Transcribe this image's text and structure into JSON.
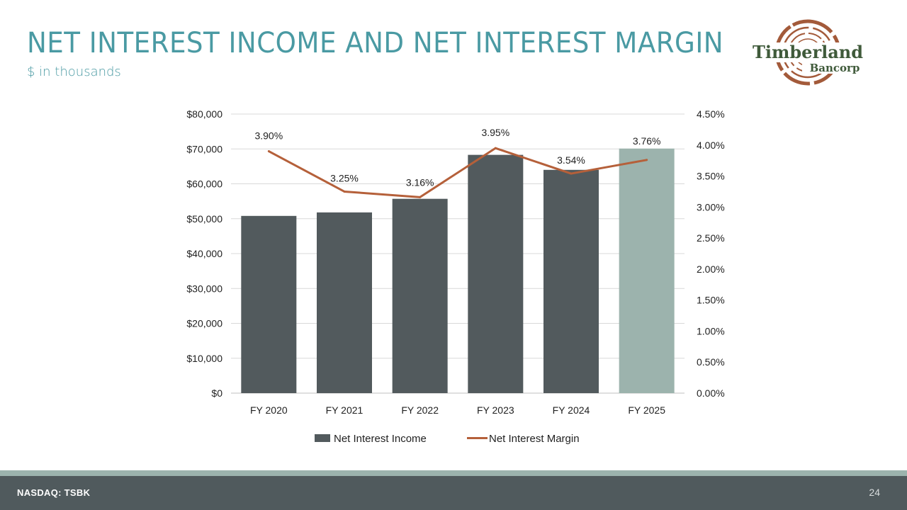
{
  "slide": {
    "title": "NET INTEREST INCOME AND NET INTEREST MARGIN",
    "subtitle": "$ in thousands",
    "footer_left": "NASDAQ: TSBK",
    "page_number": "24"
  },
  "logo": {
    "line1": "Timberland",
    "line2": "Bancorp",
    "ring_color": "#a35a3a",
    "text_color": "#3f5a3a"
  },
  "colors": {
    "accent": "#4a9aa3",
    "bar": "#525a5d",
    "bar_highlight": "#9cb3ad",
    "line": "#b5603a",
    "footer": "#505a5d"
  },
  "chart_data": {
    "type": "bar",
    "categories": [
      "FY 2020",
      "FY 2021",
      "FY 2022",
      "FY 2023",
      "FY 2024",
      "FY 2025"
    ],
    "series": [
      {
        "name": "Net Interest Income",
        "type": "bar",
        "axis": "left",
        "values": [
          50800,
          51800,
          55700,
          68300,
          64000,
          70100
        ],
        "highlight_index": 5
      },
      {
        "name": "Net Interest Margin",
        "type": "line",
        "axis": "right",
        "values": [
          3.9,
          3.25,
          3.16,
          3.95,
          3.54,
          3.76
        ],
        "labels": [
          "3.90%",
          "3.25%",
          "3.16%",
          "3.95%",
          "3.54%",
          "3.76%"
        ]
      }
    ],
    "y_left": {
      "ylim": [
        0,
        80000
      ],
      "ticks": [
        0,
        10000,
        20000,
        30000,
        40000,
        50000,
        60000,
        70000,
        80000
      ],
      "tick_labels": [
        "$0",
        "$10,000",
        "$20,000",
        "$30,000",
        "$40,000",
        "$50,000",
        "$60,000",
        "$70,000",
        "$80,000"
      ]
    },
    "y_right": {
      "ylim": [
        0,
        4.5
      ],
      "ticks": [
        0,
        0.5,
        1.0,
        1.5,
        2.0,
        2.5,
        3.0,
        3.5,
        4.0,
        4.5
      ],
      "tick_labels": [
        "0.00%",
        "0.50%",
        "1.00%",
        "1.50%",
        "2.00%",
        "2.50%",
        "3.00%",
        "3.50%",
        "4.00%",
        "4.50%"
      ]
    },
    "grid": true,
    "legend": [
      "Net Interest Income",
      "Net Interest Margin"
    ],
    "legend_position": "bottom"
  }
}
